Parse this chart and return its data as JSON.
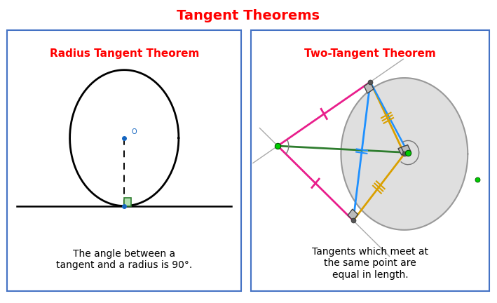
{
  "title": "Tangent Theorems",
  "title_color": "#FF0000",
  "title_fontsize": 14,
  "left_panel_title": "Radius Tangent Theorem",
  "right_panel_title": "Two-Tangent Theorem",
  "panel_title_color": "#FF0000",
  "panel_title_fontsize": 11,
  "left_caption": "The angle between a\ntangent and a radius is 90°.",
  "right_caption": "Tangents which meet at\nthe same point are\nequal in length.",
  "caption_fontsize": 10,
  "bg_color": "#FFFFFF",
  "panel_border_color": "#4472C4"
}
